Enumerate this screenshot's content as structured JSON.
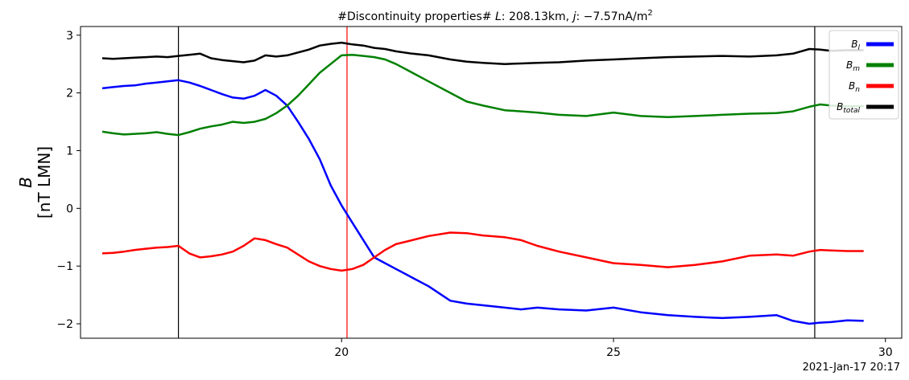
{
  "chart_data": {
    "type": "line",
    "title": "#Discontinuity properties# L: 208.13km, j: −7.57nA/m²",
    "title_parts": {
      "prefix": "#Discontinuity properties# ",
      "l_var": "L",
      "l_value": ": 208.13km, ",
      "j_var": "j",
      "j_value": ": −7.57nA/m",
      "j_exp": "2"
    },
    "ylabel_top": "B",
    "ylabel_bottom": "[nT LMN]",
    "timestamp": "2021-Jan-17 20:17",
    "xlim": [
      15.2,
      30.3
    ],
    "ylim": [
      -2.25,
      3.15
    ],
    "xticks": [
      20,
      25,
      30
    ],
    "xtick_labels": [
      "20",
      "25",
      "30"
    ],
    "yticks": [
      -2,
      -1,
      0,
      1,
      2,
      3
    ],
    "ytick_labels": [
      "−2",
      "−1",
      "0",
      "1",
      "2",
      "3"
    ],
    "grid": false,
    "legend_position": "top-right",
    "vlines": [
      {
        "x": 17.0,
        "color": "#000000"
      },
      {
        "x": 20.1,
        "color": "#ff0000"
      },
      {
        "x": 28.7,
        "color": "#000000"
      }
    ],
    "series": [
      {
        "name": "B_l",
        "label_base": "B",
        "label_sub": "l",
        "color": "#0000ff",
        "x": [
          15.6,
          15.8,
          16.0,
          16.2,
          16.4,
          16.6,
          16.8,
          17.0,
          17.2,
          17.4,
          17.6,
          17.8,
          18.0,
          18.2,
          18.4,
          18.6,
          18.8,
          19.0,
          19.2,
          19.4,
          19.6,
          19.8,
          20.0,
          20.2,
          20.4,
          20.6,
          20.8,
          21.0,
          21.3,
          21.6,
          22.0,
          22.3,
          22.6,
          23.0,
          23.3,
          23.6,
          24.0,
          24.5,
          25.0,
          25.5,
          26.0,
          26.5,
          27.0,
          27.5,
          28.0,
          28.3,
          28.6,
          28.8,
          29.0,
          29.3,
          29.6
        ],
        "y": [
          2.08,
          2.1,
          2.12,
          2.13,
          2.16,
          2.18,
          2.2,
          2.22,
          2.18,
          2.12,
          2.05,
          1.98,
          1.92,
          1.9,
          1.95,
          2.05,
          1.95,
          1.78,
          1.5,
          1.2,
          0.85,
          0.4,
          0.05,
          -0.25,
          -0.55,
          -0.85,
          -0.95,
          -1.05,
          -1.2,
          -1.35,
          -1.6,
          -1.65,
          -1.68,
          -1.72,
          -1.75,
          -1.72,
          -1.75,
          -1.77,
          -1.72,
          -1.8,
          -1.85,
          -1.88,
          -1.9,
          -1.88,
          -1.85,
          -1.95,
          -2.0,
          -1.98,
          -1.97,
          -1.94,
          -1.95
        ]
      },
      {
        "name": "B_m",
        "label_base": "B",
        "label_sub": "m",
        "color": "#008000",
        "x": [
          15.6,
          15.8,
          16.0,
          16.2,
          16.4,
          16.6,
          16.8,
          17.0,
          17.2,
          17.4,
          17.6,
          17.8,
          18.0,
          18.2,
          18.4,
          18.6,
          18.8,
          19.0,
          19.2,
          19.4,
          19.6,
          19.8,
          20.0,
          20.2,
          20.4,
          20.6,
          20.8,
          21.0,
          21.3,
          21.6,
          22.0,
          22.3,
          22.6,
          23.0,
          23.3,
          23.6,
          24.0,
          24.5,
          25.0,
          25.5,
          26.0,
          26.5,
          27.0,
          27.5,
          28.0,
          28.3,
          28.6,
          28.8,
          29.0,
          29.3,
          29.6
        ],
        "y": [
          1.33,
          1.3,
          1.28,
          1.29,
          1.3,
          1.32,
          1.29,
          1.27,
          1.32,
          1.38,
          1.42,
          1.45,
          1.5,
          1.48,
          1.5,
          1.55,
          1.65,
          1.78,
          1.95,
          2.15,
          2.35,
          2.5,
          2.65,
          2.66,
          2.64,
          2.62,
          2.58,
          2.5,
          2.35,
          2.2,
          2.0,
          1.85,
          1.78,
          1.7,
          1.68,
          1.66,
          1.62,
          1.6,
          1.66,
          1.6,
          1.58,
          1.6,
          1.62,
          1.64,
          1.65,
          1.68,
          1.76,
          1.8,
          1.78,
          1.77,
          1.77
        ]
      },
      {
        "name": "B_n",
        "label_base": "B",
        "label_sub": "n",
        "color": "#ff0000",
        "x": [
          15.6,
          15.8,
          16.0,
          16.2,
          16.4,
          16.6,
          16.8,
          17.0,
          17.2,
          17.4,
          17.6,
          17.8,
          18.0,
          18.2,
          18.4,
          18.6,
          18.8,
          19.0,
          19.2,
          19.4,
          19.6,
          19.8,
          20.0,
          20.2,
          20.4,
          20.6,
          20.8,
          21.0,
          21.3,
          21.6,
          22.0,
          22.3,
          22.6,
          23.0,
          23.3,
          23.6,
          24.0,
          24.5,
          25.0,
          25.5,
          26.0,
          26.5,
          27.0,
          27.5,
          28.0,
          28.3,
          28.6,
          28.8,
          29.0,
          29.3,
          29.6
        ],
        "y": [
          -0.78,
          -0.77,
          -0.75,
          -0.72,
          -0.7,
          -0.68,
          -0.67,
          -0.65,
          -0.78,
          -0.85,
          -0.83,
          -0.8,
          -0.75,
          -0.65,
          -0.52,
          -0.55,
          -0.62,
          -0.68,
          -0.8,
          -0.92,
          -1.0,
          -1.05,
          -1.08,
          -1.05,
          -0.98,
          -0.85,
          -0.72,
          -0.62,
          -0.55,
          -0.48,
          -0.42,
          -0.43,
          -0.47,
          -0.5,
          -0.55,
          -0.65,
          -0.75,
          -0.85,
          -0.95,
          -0.98,
          -1.02,
          -0.98,
          -0.92,
          -0.82,
          -0.8,
          -0.82,
          -0.75,
          -0.72,
          -0.73,
          -0.74,
          -0.74
        ]
      },
      {
        "name": "B_total",
        "label_base": "B",
        "label_sub": "total",
        "color": "#000000",
        "x": [
          15.6,
          15.8,
          16.0,
          16.2,
          16.4,
          16.6,
          16.8,
          17.0,
          17.2,
          17.4,
          17.6,
          17.8,
          18.0,
          18.2,
          18.4,
          18.6,
          18.8,
          19.0,
          19.2,
          19.4,
          19.6,
          19.8,
          20.0,
          20.2,
          20.4,
          20.6,
          20.8,
          21.0,
          21.3,
          21.6,
          22.0,
          22.3,
          22.6,
          23.0,
          23.3,
          23.6,
          24.0,
          24.5,
          25.0,
          25.5,
          26.0,
          26.5,
          27.0,
          27.5,
          28.0,
          28.3,
          28.6,
          28.8,
          29.0,
          29.3,
          29.6
        ],
        "y": [
          2.6,
          2.59,
          2.6,
          2.61,
          2.62,
          2.63,
          2.62,
          2.64,
          2.66,
          2.68,
          2.6,
          2.57,
          2.55,
          2.53,
          2.56,
          2.65,
          2.63,
          2.65,
          2.7,
          2.75,
          2.82,
          2.85,
          2.87,
          2.84,
          2.82,
          2.78,
          2.76,
          2.72,
          2.68,
          2.65,
          2.58,
          2.54,
          2.52,
          2.5,
          2.51,
          2.52,
          2.53,
          2.56,
          2.58,
          2.6,
          2.62,
          2.63,
          2.64,
          2.63,
          2.65,
          2.68,
          2.76,
          2.75,
          2.73,
          2.74,
          2.74
        ]
      }
    ]
  }
}
